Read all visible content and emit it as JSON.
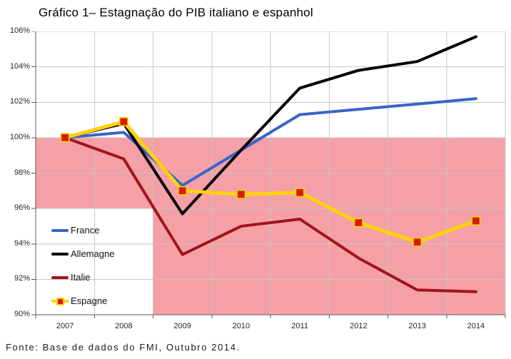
{
  "source_note": "Fonte: Base de dados do FMI, Outubro 2014.",
  "chart_data": {
    "type": "line",
    "title": "Gráfico 1– Estagnação do PIB italiano e espanhol",
    "categories": [
      "2007",
      "2008",
      "2009",
      "2010",
      "2011",
      "2012",
      "2013",
      "2014"
    ],
    "series": [
      {
        "name": "France",
        "color": "#3B64C8",
        "line_width": 4,
        "values": [
          100,
          100.3,
          97.3,
          99.3,
          101.3,
          101.6,
          101.9,
          102.2
        ]
      },
      {
        "name": "Allemagne",
        "color": "#000000",
        "line_width": 4,
        "values": [
          100,
          100.8,
          95.7,
          99.3,
          102.8,
          103.8,
          104.3,
          105.7
        ]
      },
      {
        "name": "Italie",
        "color": "#A0151B",
        "line_width": 4,
        "values": [
          100,
          98.8,
          93.4,
          95.0,
          95.4,
          93.2,
          91.4,
          91.3
        ]
      },
      {
        "name": "Espagne",
        "color": "#FFD20A",
        "line_width": 5,
        "marker": {
          "shape": "square",
          "fill": "#DF1607",
          "border": "#BF3A05",
          "halo": "#FFD20A"
        },
        "values": [
          100,
          100.9,
          97.0,
          96.8,
          96.9,
          95.2,
          94.1,
          95.3
        ]
      }
    ],
    "ylim": [
      90,
      106
    ],
    "ytick_values": [
      106,
      104,
      102,
      100,
      98,
      96,
      94,
      92,
      90
    ],
    "ytick_labels": [
      "106%",
      "104%",
      "102%",
      "100%",
      "98%",
      "96%",
      "94%",
      "92%",
      "90%"
    ],
    "grid": true,
    "gridline_color": "#C6C6C6",
    "axis_color": "#595959",
    "legend_position": "inside-bottom-left",
    "highlight_region": {
      "color": "#F4A0A6",
      "band_y": [
        96,
        100
      ],
      "block": {
        "x_start_category_index": 2,
        "y_range": [
          90,
          96
        ]
      }
    }
  }
}
